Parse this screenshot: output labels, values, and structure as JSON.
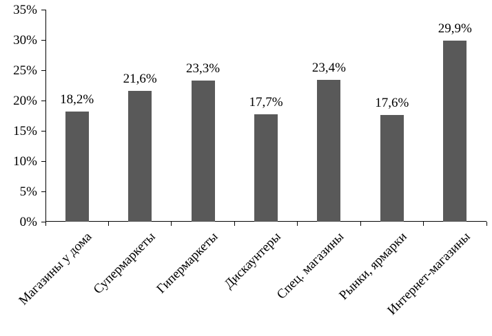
{
  "chart_data": {
    "type": "bar",
    "title": "",
    "xlabel": "",
    "ylabel": "",
    "categories": [
      "Магазины у дома",
      "Супермаркеты",
      "Гипермаркеты",
      "Дискаунтеры",
      "Спец. магазины",
      "Рынки, ярмарки",
      "Интернет-магазины"
    ],
    "values": [
      18.2,
      21.6,
      23.3,
      17.7,
      23.4,
      17.6,
      29.9
    ],
    "data_labels": [
      "18,2%",
      "21,6%",
      "23,3%",
      "17,7%",
      "23,4%",
      "17,6%",
      "29,9%"
    ],
    "ylim": [
      0,
      35
    ],
    "ytick_step": 5,
    "ytick_labels": [
      "0%",
      "5%",
      "10%",
      "15%",
      "20%",
      "25%",
      "30%",
      "35%"
    ],
    "bar_color": "#595959",
    "axis_color": "#000000",
    "grid": false,
    "legend": false
  }
}
